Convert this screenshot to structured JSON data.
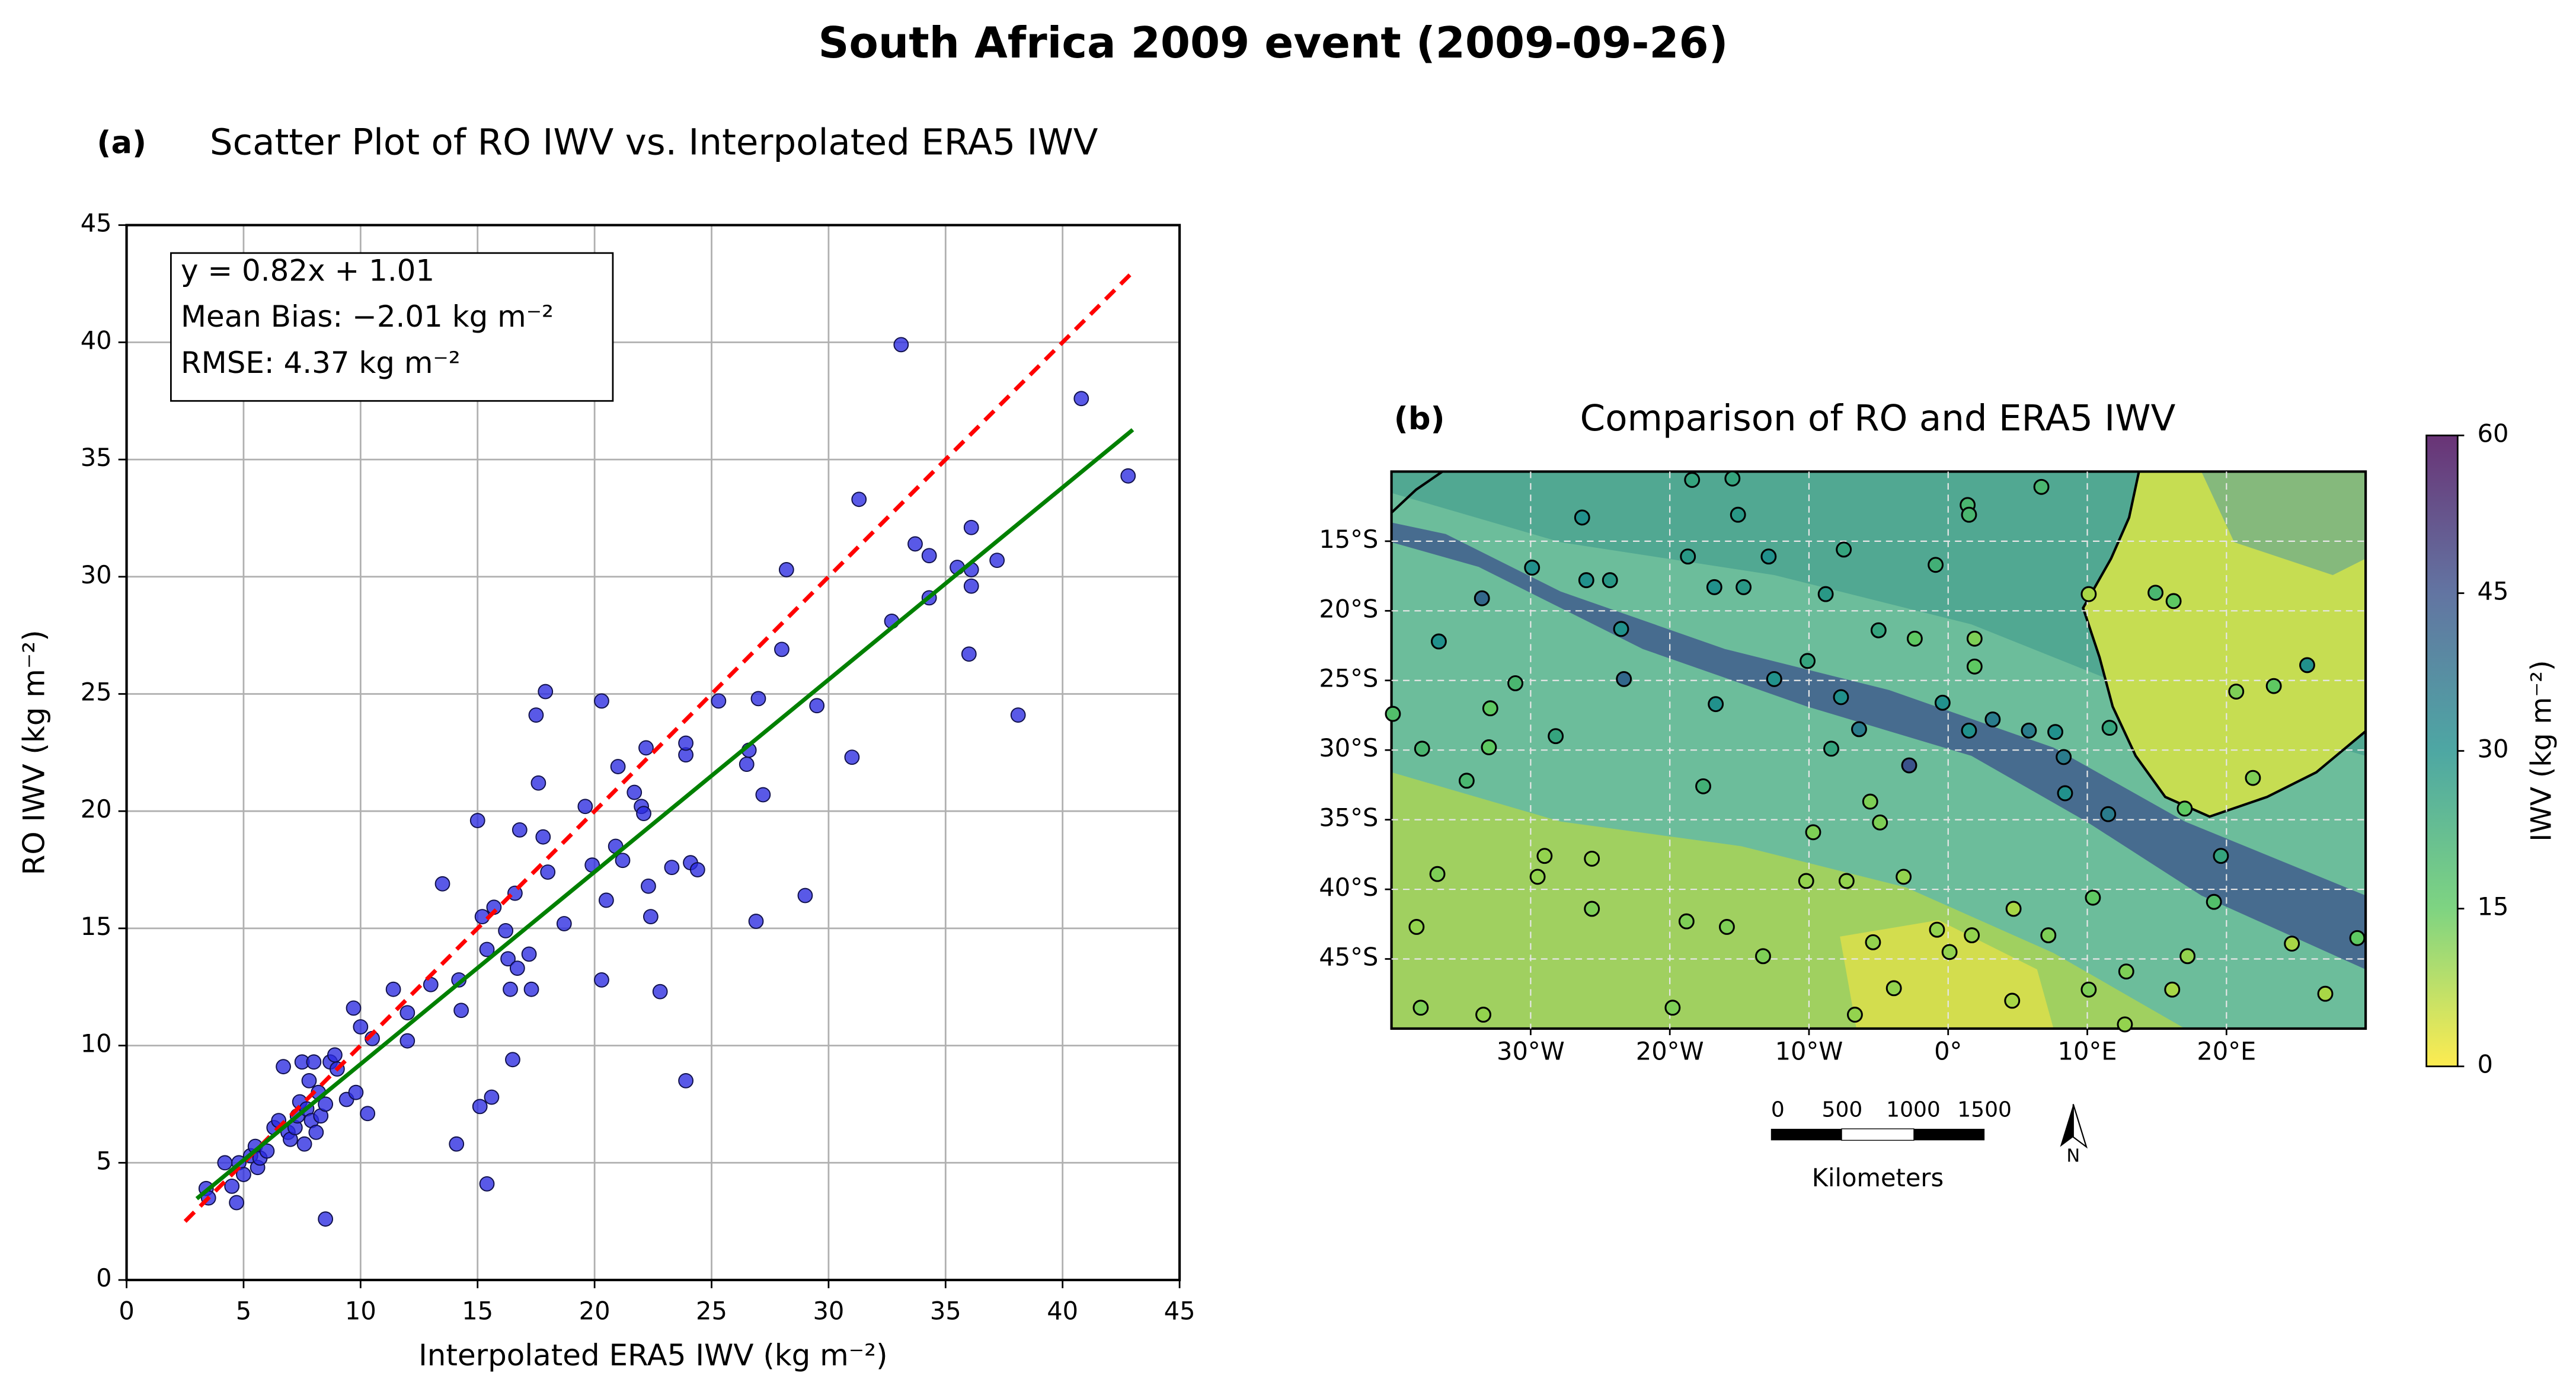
{
  "title": "South Africa 2009 event (2009-09-26)",
  "chart_data": [
    {
      "type": "scatter",
      "panel_label": "(a)",
      "title": "Scatter Plot of RO IWV vs. Interpolated ERA5 IWV",
      "xlabel": "Interpolated ERA5 IWV (kg m⁻²)",
      "ylabel": "RO IWV (kg m⁻²)",
      "annotations": [
        "y = 0.82x + 1.01",
        "Mean Bias: −2.01 kg m⁻²",
        "RMSE: 4.37 kg m⁻²"
      ],
      "xlim": [
        0,
        45
      ],
      "ylim": [
        0,
        45
      ],
      "xticks": [
        0,
        5,
        10,
        15,
        20,
        25,
        30,
        35,
        40,
        45
      ],
      "yticks": [
        0,
        5,
        10,
        15,
        20,
        25,
        30,
        35,
        40,
        45
      ],
      "grid": true,
      "series": [
        {
          "style": "marker",
          "color": "#2a2ae0",
          "x": [
            3.4,
            3.5,
            4.2,
            4.5,
            4.7,
            4.8,
            5.0,
            5.3,
            5.5,
            5.6,
            5.7,
            6.0,
            6.3,
            6.5,
            6.7,
            6.9,
            7.0,
            7.2,
            7.3,
            7.4,
            7.5,
            7.6,
            7.7,
            7.8,
            7.9,
            8.0,
            8.1,
            8.2,
            8.3,
            8.5,
            8.5,
            8.7,
            8.9,
            9.0,
            9.4,
            9.7,
            9.8,
            10.0,
            10.3,
            10.5,
            11.4,
            12.0,
            12.0,
            13.0,
            13.5,
            14.1,
            14.2,
            14.3,
            15.0,
            15.1,
            15.2,
            15.4,
            15.4,
            15.6,
            15.7,
            16.2,
            16.3,
            16.4,
            16.5,
            16.6,
            16.7,
            16.8,
            17.2,
            17.3,
            17.5,
            17.6,
            17.8,
            17.9,
            18.0,
            18.7,
            19.6,
            19.9,
            20.3,
            20.3,
            20.5,
            20.9,
            21.0,
            21.2,
            21.7,
            22.0,
            22.1,
            22.2,
            22.3,
            22.4,
            22.8,
            23.3,
            23.9,
            23.9,
            23.9,
            24.1,
            24.4,
            25.3,
            26.5,
            26.6,
            26.9,
            27.0,
            27.2,
            28.0,
            28.2,
            29.0,
            29.5,
            31.0,
            31.3,
            32.7,
            33.1,
            33.7,
            34.3,
            34.3,
            35.5,
            36.0,
            36.1,
            36.1,
            36.1,
            37.2,
            38.1,
            40.8,
            42.8
          ],
          "values": [
            3.9,
            3.5,
            5.0,
            4.0,
            3.3,
            5.0,
            4.5,
            5.3,
            5.7,
            4.8,
            5.2,
            5.5,
            6.5,
            6.8,
            9.1,
            6.3,
            6.0,
            6.5,
            7.0,
            7.6,
            9.3,
            5.8,
            7.3,
            8.5,
            6.8,
            9.3,
            6.3,
            8.0,
            7.0,
            7.5,
            2.6,
            9.3,
            9.6,
            9.0,
            7.7,
            11.6,
            8.0,
            10.8,
            7.1,
            10.3,
            12.4,
            11.4,
            10.2,
            12.6,
            16.9,
            5.8,
            12.8,
            11.5,
            19.6,
            7.4,
            15.5,
            14.1,
            4.1,
            7.8,
            15.9,
            14.9,
            13.7,
            12.4,
            9.4,
            16.5,
            13.3,
            19.2,
            13.9,
            12.4,
            24.1,
            21.2,
            18.9,
            25.1,
            17.4,
            15.2,
            20.2,
            17.7,
            12.8,
            24.7,
            16.2,
            18.5,
            21.9,
            17.9,
            20.8,
            20.2,
            19.9,
            22.7,
            16.8,
            15.5,
            12.3,
            17.6,
            22.4,
            22.9,
            8.5,
            17.8,
            17.5,
            24.7,
            22.0,
            22.6,
            15.3,
            24.8,
            20.7,
            26.9,
            30.3,
            16.4,
            24.5,
            22.3,
            33.3,
            28.1,
            39.9,
            31.4,
            29.1,
            30.9,
            30.4,
            26.7,
            29.6,
            32.1,
            30.3,
            30.7,
            24.1,
            37.6,
            34.3
          ]
        },
        {
          "style": "dashed",
          "color": "#ff0000",
          "x": [
            2.5,
            43
          ],
          "values": [
            2.5,
            43
          ]
        },
        {
          "style": "solid",
          "color": "#008000",
          "x": [
            3,
            43
          ],
          "values": [
            3.47,
            36.27
          ]
        }
      ]
    },
    {
      "type": "map",
      "panel_label": "(b)",
      "title": "Comparison of RO and ERA5 IWV",
      "xlim": [
        -40,
        30
      ],
      "ylim": [
        -50,
        -10
      ],
      "xticks": [
        {
          "value": -30,
          "label": "30°W"
        },
        {
          "value": -20,
          "label": "20°W"
        },
        {
          "value": -10,
          "label": "10°W"
        },
        {
          "value": 0,
          "label": "0°"
        },
        {
          "value": 10,
          "label": "10°E"
        },
        {
          "value": 20,
          "label": "20°E"
        }
      ],
      "yticks": [
        {
          "value": -15,
          "label": "15°S"
        },
        {
          "value": -20,
          "label": "20°S"
        },
        {
          "value": -25,
          "label": "25°S"
        },
        {
          "value": -30,
          "label": "30°S"
        },
        {
          "value": -35,
          "label": "35°S"
        },
        {
          "value": -40,
          "label": "40°S"
        },
        {
          "value": -45,
          "label": "45°S"
        }
      ],
      "grid": true,
      "series": [
        {
          "x": [
            -15.5,
            -18.4,
            1.4,
            6.7,
            1.5,
            -15.1,
            -26.3,
            -7.5,
            -12.9,
            -18.7,
            -0.9,
            -29.9,
            -26,
            -24.3,
            -16.8,
            -14.7,
            -8.8,
            -33.5,
            10.1,
            14.9,
            16.2,
            -5,
            -2.4,
            1.9,
            -23.5,
            -36.6,
            -10.1,
            1.9,
            -12.5,
            -23.3,
            -31.1,
            20.7,
            23.4,
            25.8,
            -7.7,
            -0.4,
            -32.9,
            -16.7,
            -39.9,
            3.2,
            -6.4,
            5.8,
            -28.2,
            1.5,
            7.7,
            11.6,
            -37.8,
            -33,
            -2.8,
            -8.4,
            8.3,
            -34.6,
            -17.6,
            8.4,
            21.9,
            -5.6,
            11.5,
            17,
            -9.7,
            -4.9,
            19.6,
            -29,
            -25.6,
            -36.7,
            -29.5,
            -10.2,
            -7.3,
            -3.2,
            10.4,
            19.1,
            -25.6,
            4.7,
            -18.8,
            -15.9,
            -0.8,
            1.7,
            7.2,
            -38.2,
            -5.4,
            24.7,
            29.4,
            -13.3,
            17.2,
            0.1,
            12.8,
            4.6,
            10.1,
            16.1,
            -3.9,
            -19.8,
            -37.9,
            -33.4,
            12.7,
            -6.7,
            27.1
          ],
          "y": [
            -10.5,
            -10.6,
            -12.4,
            -11.1,
            -13.1,
            -13.1,
            -13.3,
            -15.6,
            -16.1,
            -16.1,
            -16.7,
            -16.9,
            -17.8,
            -17.8,
            -18.3,
            -18.3,
            -18.8,
            -19.1,
            -18.8,
            -18.7,
            -19.3,
            -21.4,
            -22,
            -22,
            -21.3,
            -22.2,
            -23.6,
            -24,
            -24.9,
            -24.9,
            -25.2,
            -25.8,
            -25.4,
            -23.9,
            -26.2,
            -26.6,
            -27,
            -26.7,
            -27.4,
            -27.8,
            -28.5,
            -28.6,
            -29,
            -28.6,
            -28.7,
            -28.4,
            -29.9,
            -29.8,
            -31.1,
            -29.9,
            -30.5,
            -32.2,
            -32.6,
            -33.1,
            -32,
            -33.7,
            -34.6,
            -34.2,
            -35.9,
            -35.2,
            -37.6,
            -37.6,
            -37.8,
            -38.9,
            -39.1,
            -39.4,
            -39.4,
            -39.1,
            -40.6,
            -40.9,
            -41.4,
            -41.4,
            -42.3,
            -42.7,
            -42.9,
            -43.3,
            -43.3,
            -42.7,
            -43.8,
            -43.9,
            -43.5,
            -44.8,
            -44.8,
            -44.5,
            -45.9,
            -48,
            -47.2,
            -47.2,
            -47.1,
            -48.5,
            -48.5,
            -49,
            -49.7,
            -49,
            -47.5
          ],
          "values": [
            25,
            25,
            20,
            20,
            20,
            28,
            30,
            25,
            30,
            28,
            22,
            30,
            30,
            28,
            30,
            28,
            28,
            40,
            8,
            20,
            15,
            25,
            15,
            12,
            30,
            30,
            25,
            15,
            30,
            40,
            20,
            12,
            15,
            30,
            30,
            30,
            15,
            30,
            18,
            35,
            35,
            35,
            25,
            30,
            30,
            25,
            20,
            15,
            45,
            25,
            35,
            20,
            22,
            30,
            12,
            12,
            35,
            15,
            12,
            12,
            25,
            10,
            10,
            12,
            10,
            10,
            10,
            10,
            15,
            18,
            12,
            8,
            12,
            12,
            10,
            10,
            12,
            10,
            10,
            8,
            15,
            12,
            10,
            10,
            12,
            8,
            12,
            8,
            10,
            12,
            12,
            10,
            10,
            10,
            8
          ]
        }
      ],
      "colorbar": {
        "label": "IWV (kg m⁻²)",
        "lim": [
          0,
          60
        ],
        "ticks": [
          0,
          15,
          30,
          45,
          60
        ],
        "colors": [
          "#fde725",
          "#5ec962",
          "#21918c",
          "#3b528b",
          "#440154"
        ]
      },
      "scale_bar": {
        "ticks": [
          0,
          500,
          1000,
          1500
        ],
        "label": "Kilometers"
      },
      "north_label": "N"
    }
  ]
}
